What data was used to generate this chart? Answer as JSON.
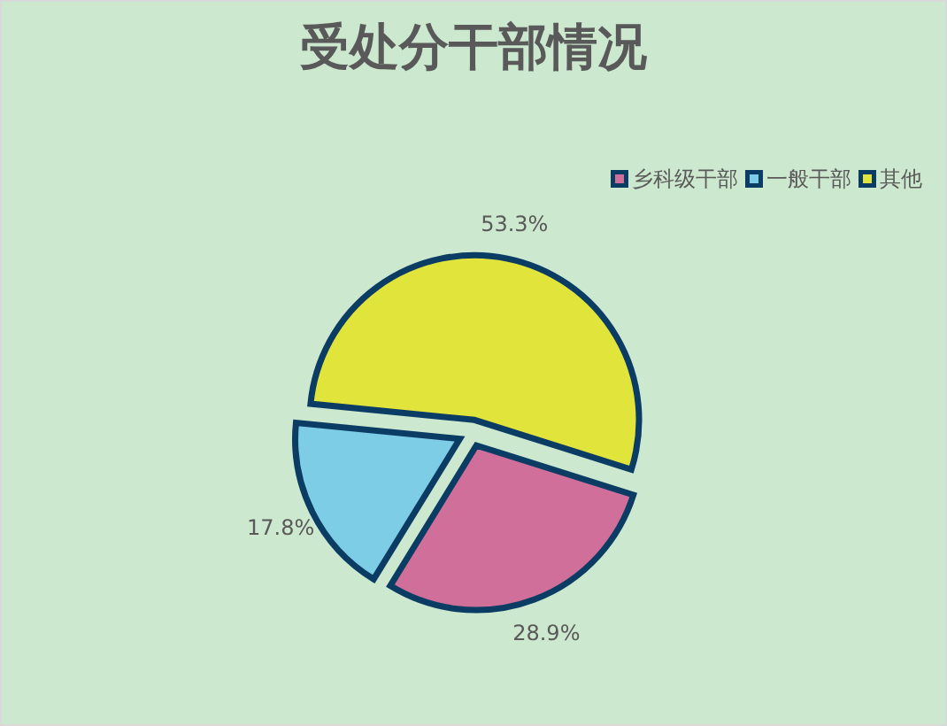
{
  "chart_data": {
    "type": "pie",
    "title": "受处分干部情况",
    "categories": [
      "乡科级干部",
      "一般干部",
      "其他"
    ],
    "values": [
      28.9,
      17.8,
      53.3
    ],
    "colors": [
      "#cf6f9a",
      "#7ecde6",
      "#e1e43b"
    ],
    "value_labels": [
      "28.9%",
      "17.8%",
      "53.3%"
    ],
    "legend": "top right"
  }
}
